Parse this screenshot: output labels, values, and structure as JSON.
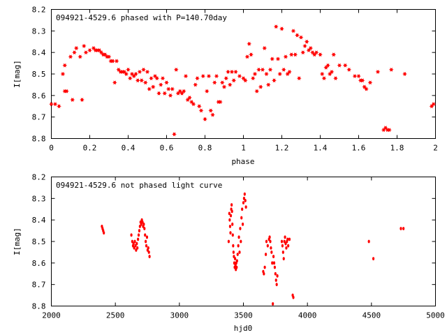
{
  "chart_data": [
    {
      "type": "scatter",
      "title": "094921-4529.6 phased with P=140.70day",
      "xlabel": "phase",
      "ylabel": "I[mag]",
      "xlim": [
        0,
        2
      ],
      "ylim": [
        8.8,
        8.2
      ],
      "y_inverted": true,
      "grid": false,
      "marker": "filled-star",
      "color": "#ff0000",
      "xticks": [
        "0",
        "0.2",
        "0.4",
        "0.6",
        "0.8",
        "1",
        "1.2",
        "1.4",
        "1.6",
        "1.8",
        "2"
      ],
      "yticks": [
        "8.2",
        "8.3",
        "8.4",
        "8.5",
        "8.6",
        "8.7",
        "8.8"
      ],
      "points": [
        [
          0.0,
          8.64
        ],
        [
          0.02,
          8.64
        ],
        [
          0.04,
          8.65
        ],
        [
          0.06,
          8.5
        ],
        [
          0.07,
          8.46
        ],
        [
          0.07,
          8.58
        ],
        [
          0.08,
          8.58
        ],
        [
          0.1,
          8.42
        ],
        [
          0.11,
          8.62
        ],
        [
          0.12,
          8.4
        ],
        [
          0.13,
          8.38
        ],
        [
          0.15,
          8.42
        ],
        [
          0.16,
          8.62
        ],
        [
          0.17,
          8.37
        ],
        [
          0.18,
          8.4
        ],
        [
          0.2,
          8.39
        ],
        [
          0.22,
          8.38
        ],
        [
          0.23,
          8.39
        ],
        [
          0.24,
          8.39
        ],
        [
          0.25,
          8.39
        ],
        [
          0.26,
          8.4
        ],
        [
          0.27,
          8.41
        ],
        [
          0.28,
          8.41
        ],
        [
          0.29,
          8.42
        ],
        [
          0.3,
          8.42
        ],
        [
          0.31,
          8.44
        ],
        [
          0.32,
          8.44
        ],
        [
          0.33,
          8.54
        ],
        [
          0.34,
          8.44
        ],
        [
          0.35,
          8.48
        ],
        [
          0.36,
          8.49
        ],
        [
          0.37,
          8.49
        ],
        [
          0.38,
          8.49
        ],
        [
          0.39,
          8.5
        ],
        [
          0.4,
          8.48
        ],
        [
          0.41,
          8.52
        ],
        [
          0.42,
          8.5
        ],
        [
          0.43,
          8.51
        ],
        [
          0.44,
          8.5
        ],
        [
          0.45,
          8.53
        ],
        [
          0.46,
          8.49
        ],
        [
          0.47,
          8.53
        ],
        [
          0.48,
          8.48
        ],
        [
          0.49,
          8.54
        ],
        [
          0.5,
          8.49
        ],
        [
          0.51,
          8.57
        ],
        [
          0.52,
          8.52
        ],
        [
          0.53,
          8.56
        ],
        [
          0.54,
          8.51
        ],
        [
          0.55,
          8.52
        ],
        [
          0.56,
          8.59
        ],
        [
          0.57,
          8.55
        ],
        [
          0.58,
          8.52
        ],
        [
          0.59,
          8.59
        ],
        [
          0.6,
          8.54
        ],
        [
          0.61,
          8.57
        ],
        [
          0.62,
          8.6
        ],
        [
          0.63,
          8.57
        ],
        [
          0.64,
          8.78
        ],
        [
          0.65,
          8.48
        ],
        [
          0.66,
          8.59
        ],
        [
          0.67,
          8.58
        ],
        [
          0.68,
          8.59
        ],
        [
          0.69,
          8.58
        ],
        [
          0.7,
          8.51
        ],
        [
          0.71,
          8.62
        ],
        [
          0.72,
          8.61
        ],
        [
          0.73,
          8.63
        ],
        [
          0.74,
          8.64
        ],
        [
          0.75,
          8.55
        ],
        [
          0.76,
          8.52
        ],
        [
          0.77,
          8.65
        ],
        [
          0.78,
          8.67
        ],
        [
          0.79,
          8.51
        ],
        [
          0.8,
          8.71
        ],
        [
          0.81,
          8.58
        ],
        [
          0.82,
          8.51
        ],
        [
          0.83,
          8.67
        ],
        [
          0.84,
          8.69
        ],
        [
          0.85,
          8.54
        ],
        [
          0.86,
          8.51
        ],
        [
          0.87,
          8.63
        ],
        [
          0.88,
          8.63
        ],
        [
          0.89,
          8.54
        ],
        [
          0.9,
          8.56
        ],
        [
          0.91,
          8.52
        ],
        [
          0.92,
          8.49
        ],
        [
          0.93,
          8.55
        ],
        [
          0.94,
          8.49
        ],
        [
          0.95,
          8.53
        ],
        [
          0.96,
          8.49
        ],
        [
          0.98,
          8.51
        ],
        [
          1.0,
          8.52
        ],
        [
          1.01,
          8.53
        ],
        [
          1.02,
          8.42
        ],
        [
          1.03,
          8.36
        ],
        [
          1.04,
          8.41
        ],
        [
          1.05,
          8.52
        ],
        [
          1.06,
          8.5
        ],
        [
          1.07,
          8.58
        ],
        [
          1.08,
          8.48
        ],
        [
          1.09,
          8.56
        ],
        [
          1.1,
          8.48
        ],
        [
          1.11,
          8.38
        ],
        [
          1.12,
          8.5
        ],
        [
          1.13,
          8.55
        ],
        [
          1.14,
          8.48
        ],
        [
          1.15,
          8.43
        ],
        [
          1.16,
          8.53
        ],
        [
          1.17,
          8.28
        ],
        [
          1.18,
          8.43
        ],
        [
          1.19,
          8.5
        ],
        [
          1.2,
          8.29
        ],
        [
          1.21,
          8.48
        ],
        [
          1.22,
          8.42
        ],
        [
          1.23,
          8.5
        ],
        [
          1.24,
          8.49
        ],
        [
          1.25,
          8.41
        ],
        [
          1.26,
          8.3
        ],
        [
          1.27,
          8.41
        ],
        [
          1.28,
          8.32
        ],
        [
          1.29,
          8.52
        ],
        [
          1.3,
          8.33
        ],
        [
          1.31,
          8.4
        ],
        [
          1.32,
          8.37
        ],
        [
          1.33,
          8.35
        ],
        [
          1.34,
          8.39
        ],
        [
          1.35,
          8.38
        ],
        [
          1.36,
          8.4
        ],
        [
          1.37,
          8.41
        ],
        [
          1.38,
          8.4
        ],
        [
          1.4,
          8.41
        ],
        [
          1.41,
          8.5
        ],
        [
          1.42,
          8.52
        ],
        [
          1.43,
          8.47
        ],
        [
          1.44,
          8.46
        ],
        [
          1.45,
          8.5
        ],
        [
          1.46,
          8.49
        ],
        [
          1.47,
          8.41
        ],
        [
          1.48,
          8.52
        ],
        [
          1.5,
          8.46
        ],
        [
          1.53,
          8.46
        ],
        [
          1.55,
          8.48
        ],
        [
          1.58,
          8.51
        ],
        [
          1.6,
          8.51
        ],
        [
          1.61,
          8.53
        ],
        [
          1.62,
          8.53
        ],
        [
          1.63,
          8.56
        ],
        [
          1.64,
          8.57
        ],
        [
          1.66,
          8.54
        ],
        [
          1.7,
          8.49
        ],
        [
          1.73,
          8.76
        ],
        [
          1.74,
          8.75
        ],
        [
          1.75,
          8.76
        ],
        [
          1.76,
          8.76
        ],
        [
          1.77,
          8.48
        ],
        [
          1.84,
          8.5
        ],
        [
          1.98,
          8.65
        ],
        [
          1.99,
          8.64
        ]
      ]
    },
    {
      "type": "scatter",
      "title": "094921-4529.6 not phased light curve",
      "xlabel": "hjd0",
      "ylabel": "I[mag]",
      "xlim": [
        2000,
        5000
      ],
      "ylim": [
        8.8,
        8.2
      ],
      "y_inverted": true,
      "grid": false,
      "marker": "small-dot",
      "color": "#ff0000",
      "xticks": [
        "2000",
        "2500",
        "3000",
        "3500",
        "4000",
        "4500",
        "5000"
      ],
      "yticks": [
        "8.2",
        "8.3",
        "8.4",
        "8.5",
        "8.6",
        "8.7",
        "8.8"
      ],
      "points": [
        [
          2395,
          8.43
        ],
        [
          2400,
          8.44
        ],
        [
          2405,
          8.45
        ],
        [
          2410,
          8.46
        ],
        [
          2625,
          8.47
        ],
        [
          2632,
          8.5
        ],
        [
          2638,
          8.52
        ],
        [
          2642,
          8.51
        ],
        [
          2647,
          8.53
        ],
        [
          2652,
          8.5
        ],
        [
          2657,
          8.52
        ],
        [
          2662,
          8.54
        ],
        [
          2667,
          8.51
        ],
        [
          2672,
          8.53
        ],
        [
          2677,
          8.49
        ],
        [
          2682,
          8.47
        ],
        [
          2687,
          8.45
        ],
        [
          2692,
          8.43
        ],
        [
          2697,
          8.41
        ],
        [
          2702,
          8.42
        ],
        [
          2707,
          8.4
        ],
        [
          2712,
          8.41
        ],
        [
          2717,
          8.43
        ],
        [
          2722,
          8.42
        ],
        [
          2727,
          8.44
        ],
        [
          2732,
          8.47
        ],
        [
          2737,
          8.5
        ],
        [
          2742,
          8.52
        ],
        [
          2747,
          8.48
        ],
        [
          2752,
          8.54
        ],
        [
          2757,
          8.53
        ],
        [
          2762,
          8.55
        ],
        [
          2767,
          8.57
        ],
        [
          3385,
          8.5
        ],
        [
          3390,
          8.37
        ],
        [
          3393,
          8.4
        ],
        [
          3396,
          8.43
        ],
        [
          3399,
          8.46
        ],
        [
          3402,
          8.38
        ],
        [
          3405,
          8.35
        ],
        [
          3408,
          8.33
        ],
        [
          3411,
          8.36
        ],
        [
          3414,
          8.42
        ],
        [
          3417,
          8.47
        ],
        [
          3420,
          8.52
        ],
        [
          3423,
          8.55
        ],
        [
          3426,
          8.57
        ],
        [
          3429,
          8.6
        ],
        [
          3432,
          8.62
        ],
        [
          3435,
          8.58
        ],
        [
          3438,
          8.61
        ],
        [
          3441,
          8.63
        ],
        [
          3444,
          8.6
        ],
        [
          3447,
          8.62
        ],
        [
          3450,
          8.59
        ],
        [
          3455,
          8.56
        ],
        [
          3460,
          8.52
        ],
        [
          3465,
          8.48
        ],
        [
          3470,
          8.55
        ],
        [
          3475,
          8.44
        ],
        [
          3480,
          8.5
        ],
        [
          3485,
          8.39
        ],
        [
          3490,
          8.35
        ],
        [
          3495,
          8.42
        ],
        [
          3500,
          8.32
        ],
        [
          3505,
          8.3
        ],
        [
          3510,
          8.28
        ],
        [
          3515,
          8.31
        ],
        [
          3520,
          8.34
        ],
        [
          3655,
          8.64
        ],
        [
          3660,
          8.65
        ],
        [
          3667,
          8.62
        ],
        [
          3675,
          8.56
        ],
        [
          3680,
          8.5
        ],
        [
          3690,
          8.52
        ],
        [
          3700,
          8.49
        ],
        [
          3705,
          8.48
        ],
        [
          3710,
          8.5
        ],
        [
          3715,
          8.53
        ],
        [
          3720,
          8.55
        ],
        [
          3725,
          8.6
        ],
        [
          3730,
          8.79
        ],
        [
          3735,
          8.57
        ],
        [
          3740,
          8.6
        ],
        [
          3745,
          8.62
        ],
        [
          3750,
          8.65
        ],
        [
          3755,
          8.68
        ],
        [
          3760,
          8.7
        ],
        [
          3765,
          8.66
        ],
        [
          3800,
          8.5
        ],
        [
          3805,
          8.52
        ],
        [
          3810,
          8.55
        ],
        [
          3815,
          8.58
        ],
        [
          3820,
          8.5
        ],
        [
          3825,
          8.48
        ],
        [
          3830,
          8.51
        ],
        [
          3835,
          8.53
        ],
        [
          3840,
          8.5
        ],
        [
          3845,
          8.49
        ],
        [
          3850,
          8.52
        ],
        [
          3860,
          8.49
        ],
        [
          3885,
          8.75
        ],
        [
          3890,
          8.76
        ],
        [
          4480,
          8.5
        ],
        [
          4515,
          8.58
        ],
        [
          4730,
          8.44
        ],
        [
          4750,
          8.44
        ]
      ]
    }
  ]
}
